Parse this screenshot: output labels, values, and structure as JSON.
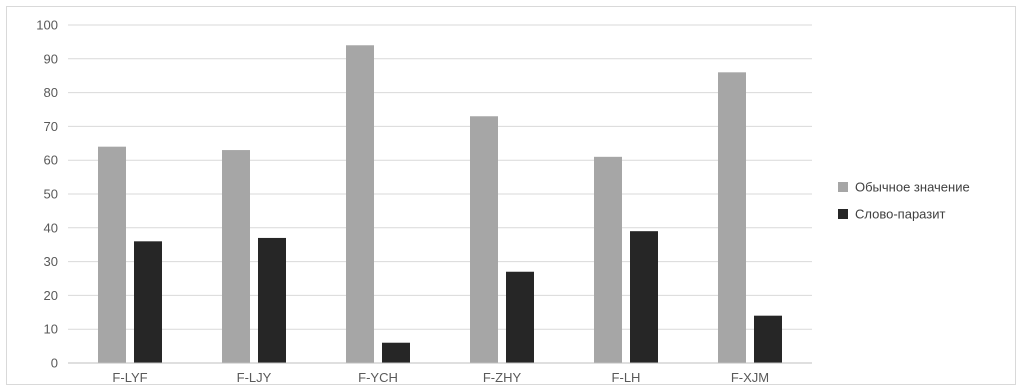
{
  "chart_data": {
    "type": "bar",
    "categories": [
      "F-LYF",
      "F-LJY",
      "F-YCH",
      "F-ZHY",
      "F-LH",
      "F-XJM"
    ],
    "series": [
      {
        "name": "Обычное значение",
        "values": [
          64,
          63,
          94,
          73,
          61,
          86
        ],
        "color": "#a6a6a6"
      },
      {
        "name": "Слово-паразит",
        "values": [
          36,
          37,
          6,
          27,
          39,
          14
        ],
        "color": "#262626"
      }
    ],
    "ylim": [
      0,
      100
    ],
    "yticks": [
      0,
      10,
      20,
      30,
      40,
      50,
      60,
      70,
      80,
      90,
      100
    ],
    "grid": true,
    "legend": "right",
    "title": "",
    "xlabel": "",
    "ylabel": ""
  }
}
